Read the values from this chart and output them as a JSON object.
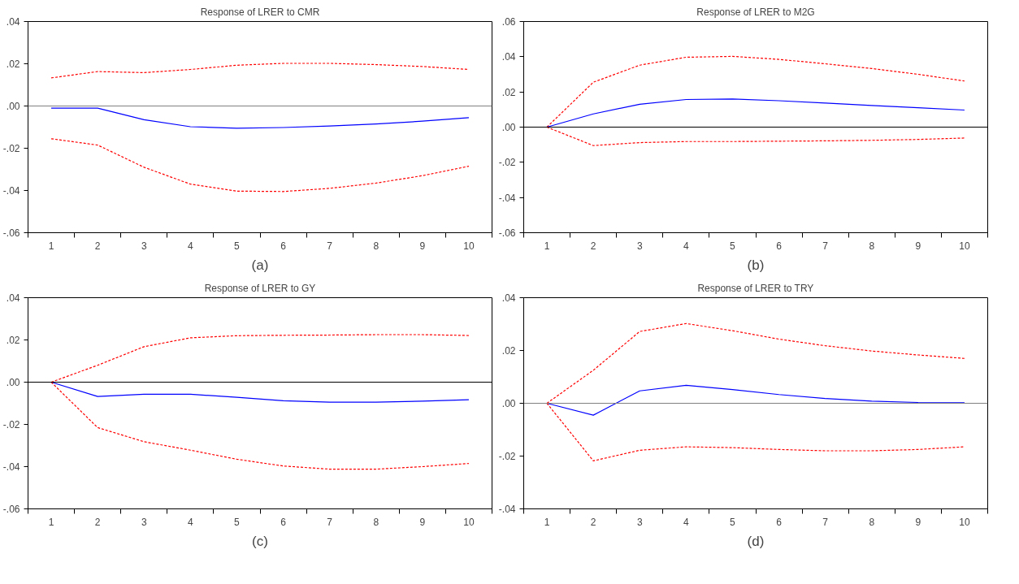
{
  "chart_data": [
    {
      "type": "line",
      "title": "Response of LRER to CMR",
      "annotations": [
        "(a)"
      ],
      "categories": [
        "1",
        "2",
        "3",
        "4",
        "5",
        "6",
        "7",
        "8",
        "9",
        "10"
      ],
      "series": [
        {
          "color": "#ff0000",
          "line_style": "dashed",
          "values": [
            0.0133,
            0.0163,
            0.0158,
            0.0173,
            0.0193,
            0.0202,
            0.0202,
            0.0196,
            0.0187,
            0.0173
          ]
        },
        {
          "color": "#0000ff",
          "line_style": "solid",
          "values": [
            -0.001,
            -0.001,
            -0.0065,
            -0.0098,
            -0.0105,
            -0.0102,
            -0.0095,
            -0.0085,
            -0.0072,
            -0.0055
          ]
        },
        {
          "color": "#ff0000",
          "line_style": "dashed",
          "values": [
            -0.0155,
            -0.0185,
            -0.029,
            -0.037,
            -0.0403,
            -0.0405,
            -0.039,
            -0.0365,
            -0.033,
            -0.0285
          ]
        }
      ],
      "ylim": [
        -0.06,
        0.04
      ],
      "yticks": [
        {
          "value": -0.06,
          "label": "-.06"
        },
        {
          "value": -0.04,
          "label": "-.04"
        },
        {
          "value": -0.02,
          "label": "-.02"
        },
        {
          "value": 0,
          "label": ".00"
        },
        {
          "value": 0.02,
          "label": ".02"
        },
        {
          "value": 0.04,
          "label": ".04"
        }
      ],
      "ref_lines": [
        {
          "axis": "y",
          "value": 0,
          "color": "#808080"
        }
      ],
      "grid": false
    },
    {
      "type": "line",
      "title": "Response of LRER to M2G",
      "annotations": [
        "(b)"
      ],
      "categories": [
        "1",
        "2",
        "3",
        "4",
        "5",
        "6",
        "7",
        "8",
        "9",
        "10"
      ],
      "series": [
        {
          "color": "#ff0000",
          "line_style": "dashed",
          "values": [
            0,
            0.0255,
            0.0352,
            0.0397,
            0.0402,
            0.0385,
            0.036,
            0.0333,
            0.03,
            0.0262
          ]
        },
        {
          "color": "#0000ff",
          "line_style": "solid",
          "values": [
            0,
            0.0075,
            0.013,
            0.0157,
            0.016,
            0.015,
            0.0137,
            0.0123,
            0.011,
            0.0097
          ]
        },
        {
          "color": "#ff0000",
          "line_style": "dashed",
          "values": [
            0,
            -0.0105,
            -0.0088,
            -0.0082,
            -0.0082,
            -0.008,
            -0.0078,
            -0.0075,
            -0.007,
            -0.0062
          ]
        }
      ],
      "ylim": [
        -0.06,
        0.06
      ],
      "yticks": [
        {
          "value": -0.06,
          "label": "-.06"
        },
        {
          "value": -0.04,
          "label": "-.04"
        },
        {
          "value": -0.02,
          "label": "-.02"
        },
        {
          "value": 0,
          "label": ".00"
        },
        {
          "value": 0.02,
          "label": ".02"
        },
        {
          "value": 0.04,
          "label": ".04"
        },
        {
          "value": 0.06,
          "label": ".06"
        }
      ],
      "ref_lines": [
        {
          "axis": "y",
          "value": 0,
          "color": "#000000"
        }
      ],
      "grid": false
    },
    {
      "type": "line",
      "title": "Response of LRER to GY",
      "annotations": [
        "(c)"
      ],
      "categories": [
        "1",
        "2",
        "3",
        "4",
        "5",
        "6",
        "7",
        "8",
        "9",
        "10"
      ],
      "series": [
        {
          "color": "#ff0000",
          "line_style": "dashed",
          "values": [
            0,
            0.008,
            0.0168,
            0.021,
            0.022,
            0.0222,
            0.0223,
            0.0225,
            0.0225,
            0.0221
          ]
        },
        {
          "color": "#0000ff",
          "line_style": "solid",
          "values": [
            0,
            -0.0068,
            -0.0057,
            -0.0057,
            -0.0072,
            -0.0088,
            -0.0095,
            -0.0095,
            -0.009,
            -0.0083
          ]
        },
        {
          "color": "#ff0000",
          "line_style": "dashed",
          "values": [
            0,
            -0.0215,
            -0.0282,
            -0.0322,
            -0.0365,
            -0.0397,
            -0.0412,
            -0.0412,
            -0.04,
            -0.0385
          ]
        }
      ],
      "ylim": [
        -0.06,
        0.04
      ],
      "yticks": [
        {
          "value": -0.06,
          "label": "-.06"
        },
        {
          "value": -0.04,
          "label": "-.04"
        },
        {
          "value": -0.02,
          "label": "-.02"
        },
        {
          "value": 0,
          "label": ".00"
        },
        {
          "value": 0.02,
          "label": ".02"
        },
        {
          "value": 0.04,
          "label": ".04"
        }
      ],
      "ref_lines": [
        {
          "axis": "y",
          "value": 0,
          "color": "#000000"
        }
      ],
      "grid": false
    },
    {
      "type": "line",
      "title": "Response of LRER to TRY",
      "annotations": [
        "(d)"
      ],
      "categories": [
        "1",
        "2",
        "3",
        "4",
        "5",
        "6",
        "7",
        "8",
        "9",
        "10"
      ],
      "series": [
        {
          "color": "#ff0000",
          "line_style": "dashed",
          "values": [
            0,
            0.0125,
            0.0272,
            0.0302,
            0.0275,
            0.0243,
            0.0218,
            0.0198,
            0.0183,
            0.017
          ]
        },
        {
          "color": "#0000ff",
          "line_style": "solid",
          "values": [
            0,
            -0.0045,
            0.0047,
            0.0068,
            0.0052,
            0.0033,
            0.0018,
            0.0008,
            0.0003,
            0.0002
          ]
        },
        {
          "color": "#ff0000",
          "line_style": "dashed",
          "values": [
            0,
            -0.0218,
            -0.0178,
            -0.0165,
            -0.0168,
            -0.0175,
            -0.018,
            -0.018,
            -0.0175,
            -0.0165
          ]
        }
      ],
      "ylim": [
        -0.04,
        0.04
      ],
      "yticks": [
        {
          "value": -0.04,
          "label": "-.04"
        },
        {
          "value": -0.02,
          "label": "-.02"
        },
        {
          "value": 0,
          "label": ".00"
        },
        {
          "value": 0.02,
          "label": ".02"
        },
        {
          "value": 0.04,
          "label": ".04"
        }
      ],
      "ref_lines": [
        {
          "axis": "y",
          "value": 0,
          "color": "#808080"
        }
      ],
      "grid": false
    }
  ]
}
